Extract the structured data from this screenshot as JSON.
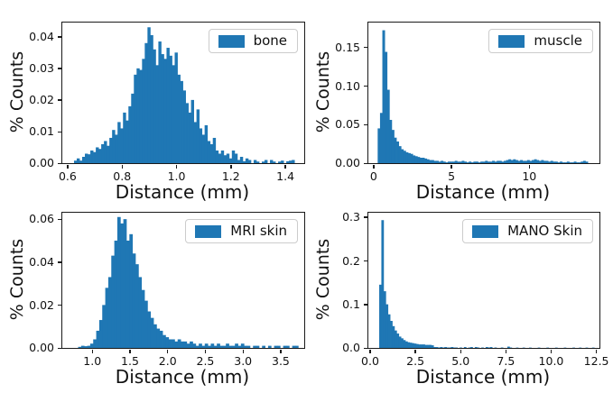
{
  "style": {
    "bar_color": "#1f77b4",
    "spine_color": "#1a1a1a",
    "text_color": "#111111",
    "legend_border_color": "#cccccc",
    "background": "#ffffff"
  },
  "chart_data": [
    {
      "panel": "top-left",
      "type": "bar",
      "legend": "bone",
      "xlabel": "Distance (mm)",
      "ylabel": "% Counts",
      "legend_position": "upper-right",
      "grid": false,
      "xlim": [
        0.577,
        1.466
      ],
      "ylim": [
        0,
        0.0445
      ],
      "xticks": [
        0.6,
        0.8,
        1.0,
        1.2,
        1.4
      ],
      "xtick_labels": [
        "0.6",
        "0.8",
        "1.0",
        "1.2",
        "1.4"
      ],
      "yticks": [
        0,
        0.01,
        0.02,
        0.03,
        0.04
      ],
      "ytick_labels": [
        "0.00",
        "0.01",
        "0.02",
        "0.03",
        "0.04"
      ],
      "bins": {
        "start": 0.62,
        "width": 0.01
      },
      "heights": [
        0.0008,
        0.0015,
        0.0008,
        0.002,
        0.003,
        0.0028,
        0.004,
        0.0035,
        0.005,
        0.0045,
        0.006,
        0.007,
        0.0055,
        0.008,
        0.0105,
        0.009,
        0.013,
        0.011,
        0.016,
        0.0135,
        0.018,
        0.022,
        0.028,
        0.03,
        0.0295,
        0.033,
        0.038,
        0.043,
        0.0405,
        0.036,
        0.031,
        0.0385,
        0.0345,
        0.033,
        0.0365,
        0.034,
        0.031,
        0.035,
        0.028,
        0.026,
        0.023,
        0.019,
        0.016,
        0.02,
        0.013,
        0.017,
        0.011,
        0.009,
        0.012,
        0.007,
        0.006,
        0.008,
        0.004,
        0.003,
        0.004,
        0.0025,
        0.003,
        0.0015,
        0.004,
        0.003,
        0.001,
        0.002,
        0.0006,
        0.0015,
        0.001,
        0,
        0.001,
        0.0005,
        0,
        0.0005,
        0.001,
        0,
        0.001,
        0.0005,
        0,
        0.0005,
        0.0008,
        0,
        0.0006,
        0.0008,
        0.001
      ]
    },
    {
      "panel": "top-right",
      "type": "bar",
      "legend": "muscle",
      "xlabel": "Distance (mm)",
      "ylabel": "% Counts",
      "legend_position": "upper-right",
      "grid": false,
      "xlim": [
        -0.4,
        14.45
      ],
      "ylim": [
        0,
        0.182
      ],
      "xticks": [
        0,
        5,
        10
      ],
      "xtick_labels": [
        "0",
        "5",
        "10"
      ],
      "yticks": [
        0,
        0.05,
        0.1,
        0.15
      ],
      "ytick_labels": [
        "0.00",
        "0.05",
        "0.10",
        "0.15"
      ],
      "bins": {
        "start": 0.2,
        "width": 0.15
      },
      "heights": [
        0.045,
        0.065,
        0.172,
        0.144,
        0.095,
        0.056,
        0.043,
        0.033,
        0.028,
        0.022,
        0.018,
        0.016,
        0.014,
        0.013,
        0.012,
        0.01,
        0.009,
        0.008,
        0.007,
        0.007,
        0.006,
        0.005,
        0.004,
        0.004,
        0.003,
        0.003,
        0.002,
        0.003,
        0.002,
        0.001,
        0.002,
        0.002,
        0.002,
        0.003,
        0.002,
        0.002,
        0.003,
        0.002,
        0.001,
        0.002,
        0.001,
        0.002,
        0.002,
        0.001,
        0.002,
        0.002,
        0.003,
        0.002,
        0.002,
        0.003,
        0.002,
        0.003,
        0.003,
        0.002,
        0.003,
        0.004,
        0.005,
        0.004,
        0.005,
        0.004,
        0.003,
        0.004,
        0.003,
        0.003,
        0.004,
        0.003,
        0.004,
        0.005,
        0.004,
        0.003,
        0.004,
        0.003,
        0.003,
        0.002,
        0.003,
        0.002,
        0.002,
        0.001,
        0.002,
        0.001,
        0.001,
        0.002,
        0.001,
        0.001,
        0.002,
        0.001,
        0.001,
        0.002,
        0.003,
        0.002
      ]
    },
    {
      "panel": "bottom-left",
      "type": "bar",
      "legend": "MRI skin",
      "xlabel": "Distance (mm)",
      "ylabel": "% Counts",
      "legend_position": "upper-right",
      "grid": false,
      "xlim": [
        0.59,
        3.8
      ],
      "ylim": [
        0,
        0.063
      ],
      "xticks": [
        1.0,
        1.5,
        2.0,
        2.5,
        3.0,
        3.5
      ],
      "xtick_labels": [
        "1.0",
        "1.5",
        "2.0",
        "2.5",
        "3.0",
        "3.5"
      ],
      "yticks": [
        0,
        0.02,
        0.04,
        0.06
      ],
      "ytick_labels": [
        "0.00",
        "0.02",
        "0.04",
        "0.06"
      ],
      "bins": {
        "start": 0.8,
        "width": 0.04
      },
      "heights": [
        0.0005,
        0.001,
        0.0008,
        0.001,
        0.002,
        0.004,
        0.008,
        0.013,
        0.02,
        0.028,
        0.033,
        0.043,
        0.05,
        0.061,
        0.058,
        0.06,
        0.05,
        0.053,
        0.044,
        0.039,
        0.033,
        0.027,
        0.022,
        0.017,
        0.014,
        0.011,
        0.009,
        0.008,
        0.006,
        0.005,
        0.004,
        0.004,
        0.003,
        0.004,
        0.003,
        0.003,
        0.002,
        0.003,
        0.002,
        0.001,
        0.002,
        0.001,
        0.002,
        0.001,
        0.002,
        0.001,
        0.002,
        0.001,
        0.001,
        0.002,
        0.001,
        0.001,
        0.002,
        0.001,
        0.002,
        0.001,
        0.001,
        0,
        0.001,
        0.001,
        0,
        0.001,
        0,
        0.001,
        0,
        0.001,
        0.001,
        0,
        0.001,
        0.001,
        0,
        0.001,
        0.001
      ]
    },
    {
      "panel": "bottom-right",
      "type": "bar",
      "legend": "MANO Skin",
      "xlabel": "Distance (mm)",
      "ylabel": "% Counts",
      "legend_position": "upper-right",
      "grid": false,
      "xlim": [
        -0.15,
        12.62
      ],
      "ylim": [
        0,
        0.31
      ],
      "xticks": [
        0.0,
        2.5,
        5.0,
        7.5,
        10.0,
        12.5
      ],
      "xtick_labels": [
        "0.0",
        "2.5",
        "5.0",
        "7.5",
        "10.0",
        "12.5"
      ],
      "yticks": [
        0,
        0.1,
        0.2,
        0.3
      ],
      "ytick_labels": [
        "0.0",
        "0.1",
        "0.2",
        "0.3"
      ],
      "bins": {
        "start": 0.45,
        "width": 0.12
      },
      "heights": [
        0.145,
        0.293,
        0.13,
        0.1,
        0.077,
        0.062,
        0.05,
        0.04,
        0.033,
        0.026,
        0.022,
        0.018,
        0.015,
        0.013,
        0.012,
        0.011,
        0.01,
        0.009,
        0.008,
        0.008,
        0.008,
        0.007,
        0.007,
        0.007,
        0.006,
        0.002,
        0.002,
        0.001,
        0.002,
        0.001,
        0.002,
        0.001,
        0.001,
        0.002,
        0.001,
        0.001,
        0,
        0.001,
        0,
        0.002,
        0,
        0.001,
        0.002,
        0,
        0.002,
        0.001,
        0,
        0.001,
        0,
        0.002,
        0.001,
        0.002,
        0,
        0.001,
        0,
        0,
        0.001,
        0,
        0,
        0.003,
        0.001,
        0,
        0,
        0.0008,
        0,
        0,
        0.0008,
        0,
        0,
        0.0008,
        0,
        0,
        0,
        0.0008,
        0,
        0,
        0,
        0.0008,
        0,
        0,
        0,
        0.0008,
        0,
        0,
        0,
        0.0008,
        0,
        0,
        0,
        0.0008,
        0,
        0,
        0.0008,
        0,
        0,
        0.0008,
        0,
        0,
        0.0008
      ]
    }
  ]
}
